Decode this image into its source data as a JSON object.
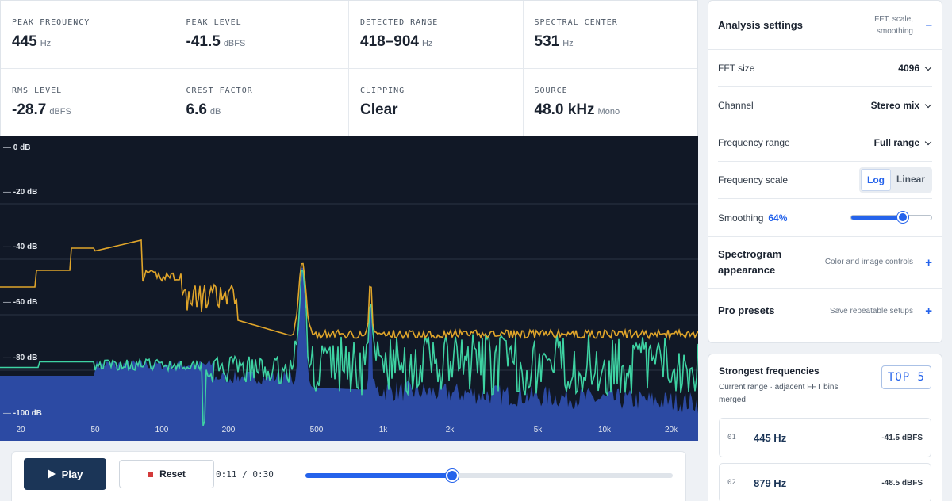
{
  "metrics": [
    {
      "label": "PEAK FREQUENCY",
      "value": "445",
      "unit": "Hz"
    },
    {
      "label": "PEAK LEVEL",
      "value": "-41.5",
      "unit": "dBFS"
    },
    {
      "label": "DETECTED RANGE",
      "value": "418–904",
      "unit": "Hz"
    },
    {
      "label": "SPECTRAL CENTER",
      "value": "531",
      "unit": "Hz"
    },
    {
      "label": "RMS LEVEL",
      "value": "-28.7",
      "unit": "dBFS"
    },
    {
      "label": "CREST FACTOR",
      "value": "6.6",
      "unit": "dB"
    },
    {
      "label": "CLIPPING",
      "value": "Clear",
      "unit": ""
    },
    {
      "label": "SOURCE",
      "value": "48.0 kHz",
      "unit": "Mono"
    }
  ],
  "spectrum": {
    "db_labels": [
      "0 dB",
      "-20 dB",
      "-40 dB",
      "-60 dB",
      "-80 dB",
      "-100 dB"
    ],
    "freq_labels": [
      "20",
      "50",
      "100",
      "200",
      "500",
      "1k",
      "2k",
      "5k",
      "10k",
      "20k"
    ],
    "colors": {
      "background": "#111826",
      "spectrum_fill": "#2c4aa3",
      "peak_hold": "#e0a52a",
      "average": "#3ed3a3"
    }
  },
  "transport": {
    "play_label": "Play",
    "reset_label": "Reset",
    "time": "0:11 / 0:30",
    "progress": 0.4
  },
  "settings": {
    "title": "Analysis settings",
    "hint": "FFT, scale, smoothing",
    "toggle": "–",
    "fft_label": "FFT size",
    "fft_value": "4096",
    "channel_label": "Channel",
    "channel_value": "Stereo mix",
    "range_label": "Frequency range",
    "range_value": "Full range",
    "scale_label": "Frequency scale",
    "scale_options": [
      "Log",
      "Linear"
    ],
    "scale_selected": "Log",
    "smoothing_label": "Smoothing",
    "smoothing_value": "64%",
    "smoothing_level": 0.64
  },
  "sections": [
    {
      "title": "Spectrogram appearance",
      "hint": "Color and image controls",
      "toggle": "+"
    },
    {
      "title": "Pro presets",
      "hint": "Save repeatable setups",
      "toggle": "+"
    }
  ],
  "strongest": {
    "title": "Strongest frequencies",
    "subtitle": "Current range · adjacent FFT bins merged",
    "badge": "TOP 5",
    "items": [
      {
        "rank": "01",
        "freq": "445 Hz",
        "level": "-41.5 dBFS"
      },
      {
        "rank": "02",
        "freq": "879 Hz",
        "level": "-48.5 dBFS"
      }
    ]
  }
}
